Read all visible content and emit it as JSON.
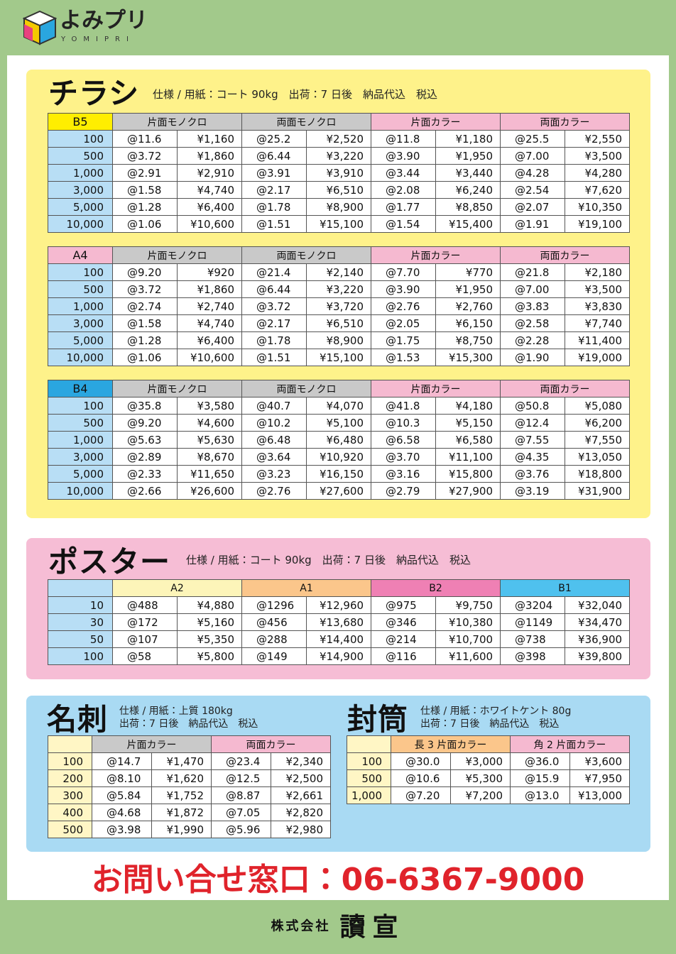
{
  "header": {
    "logo": "よみプリ",
    "logo_sub": "YOMIPRI"
  },
  "flyer": {
    "title": "チラシ",
    "spec": "仕様 / 用紙：コート 90kg　出荷：7 日後　納品代込　税込",
    "tables": [
      {
        "size": "B5",
        "columns": [
          "片面モノクロ",
          "両面モノクロ",
          "片面カラー",
          "両面カラー"
        ],
        "rows": [
          [
            "100",
            "@11.6",
            "¥1,160",
            "@25.2",
            "¥2,520",
            "@11.8",
            "¥1,180",
            "@25.5",
            "¥2,550"
          ],
          [
            "500",
            "@3.72",
            "¥1,860",
            "@6.44",
            "¥3,220",
            "@3.90",
            "¥1,950",
            "@7.00",
            "¥3,500"
          ],
          [
            "1,000",
            "@2.91",
            "¥2,910",
            "@3.91",
            "¥3,910",
            "@3.44",
            "¥3,440",
            "@4.28",
            "¥4,280"
          ],
          [
            "3,000",
            "@1.58",
            "¥4,740",
            "@2.17",
            "¥6,510",
            "@2.08",
            "¥6,240",
            "@2.54",
            "¥7,620"
          ],
          [
            "5,000",
            "@1.28",
            "¥6,400",
            "@1.78",
            "¥8,900",
            "@1.77",
            "¥8,850",
            "@2.07",
            "¥10,350"
          ],
          [
            "10,000",
            "@1.06",
            "¥10,600",
            "@1.51",
            "¥15,100",
            "@1.54",
            "¥15,400",
            "@1.91",
            "¥19,100"
          ]
        ]
      },
      {
        "size": "A4",
        "columns": [
          "片面モノクロ",
          "両面モノクロ",
          "片面カラー",
          "両面カラー"
        ],
        "rows": [
          [
            "100",
            "@9.20",
            "¥920",
            "@21.4",
            "¥2,140",
            "@7.70",
            "¥770",
            "@21.8",
            "¥2,180"
          ],
          [
            "500",
            "@3.72",
            "¥1,860",
            "@6.44",
            "¥3,220",
            "@3.90",
            "¥1,950",
            "@7.00",
            "¥3,500"
          ],
          [
            "1,000",
            "@2.74",
            "¥2,740",
            "@3.72",
            "¥3,720",
            "@2.76",
            "¥2,760",
            "@3.83",
            "¥3,830"
          ],
          [
            "3,000",
            "@1.58",
            "¥4,740",
            "@2.17",
            "¥6,510",
            "@2.05",
            "¥6,150",
            "@2.58",
            "¥7,740"
          ],
          [
            "5,000",
            "@1.28",
            "¥6,400",
            "@1.78",
            "¥8,900",
            "@1.75",
            "¥8,750",
            "@2.28",
            "¥11,400"
          ],
          [
            "10,000",
            "@1.06",
            "¥10,600",
            "@1.51",
            "¥15,100",
            "@1.53",
            "¥15,300",
            "@1.90",
            "¥19,000"
          ]
        ]
      },
      {
        "size": "B4",
        "columns": [
          "片面モノクロ",
          "両面モノクロ",
          "片面カラー",
          "両面カラー"
        ],
        "rows": [
          [
            "100",
            "@35.8",
            "¥3,580",
            "@40.7",
            "¥4,070",
            "@41.8",
            "¥4,180",
            "@50.8",
            "¥5,080"
          ],
          [
            "500",
            "@9.20",
            "¥4,600",
            "@10.2",
            "¥5,100",
            "@10.3",
            "¥5,150",
            "@12.4",
            "¥6,200"
          ],
          [
            "1,000",
            "@5.63",
            "¥5,630",
            "@6.48",
            "¥6,480",
            "@6.58",
            "¥6,580",
            "@7.55",
            "¥7,550"
          ],
          [
            "3,000",
            "@2.89",
            "¥8,670",
            "@3.64",
            "¥10,920",
            "@3.70",
            "¥11,100",
            "@4.35",
            "¥13,050"
          ],
          [
            "5,000",
            "@2.33",
            "¥11,650",
            "@3.23",
            "¥16,150",
            "@3.16",
            "¥15,800",
            "@3.76",
            "¥18,800"
          ],
          [
            "10,000",
            "@2.66",
            "¥26,600",
            "@2.76",
            "¥27,600",
            "@2.79",
            "¥27,900",
            "@3.19",
            "¥31,900"
          ]
        ]
      }
    ]
  },
  "poster": {
    "title": "ポスター",
    "spec": "仕様 / 用紙：コート 90kg　出荷：7 日後　納品代込　税込",
    "table": {
      "columns": [
        "A2",
        "A1",
        "B2",
        "B1"
      ],
      "rows": [
        [
          "10",
          "@488",
          "¥4,880",
          "@1296",
          "¥12,960",
          "@975",
          "¥9,750",
          "@3204",
          "¥32,040"
        ],
        [
          "30",
          "@172",
          "¥5,160",
          "@456",
          "¥13,680",
          "@346",
          "¥10,380",
          "@1149",
          "¥34,470"
        ],
        [
          "50",
          "@107",
          "¥5,350",
          "@288",
          "¥14,400",
          "@214",
          "¥10,700",
          "@738",
          "¥36,900"
        ],
        [
          "100",
          "@58",
          "¥5,800",
          "@149",
          "¥14,900",
          "@116",
          "¥11,600",
          "@398",
          "¥39,800"
        ]
      ]
    }
  },
  "business_card": {
    "title": "名刺",
    "spec": [
      "仕様 / 用紙：上質 180kg",
      "出荷：7 日後　納品代込　税込"
    ],
    "table": {
      "columns": [
        "片面カラー",
        "両面カラー"
      ],
      "rows": [
        [
          "100",
          "@14.7",
          "¥1,470",
          "@23.4",
          "¥2,340"
        ],
        [
          "200",
          "@8.10",
          "¥1,620",
          "@12.5",
          "¥2,500"
        ],
        [
          "300",
          "@5.84",
          "¥1,752",
          "@8.87",
          "¥2,661"
        ],
        [
          "400",
          "@4.68",
          "¥1,872",
          "@7.05",
          "¥2,820"
        ],
        [
          "500",
          "@3.98",
          "¥1,990",
          "@5.96",
          "¥2,980"
        ]
      ]
    }
  },
  "envelope": {
    "title": "封筒",
    "spec": [
      "仕様 / 用紙：ホワイトケント 80g",
      "出荷：7 日後　納品代込　税込"
    ],
    "table": {
      "columns": [
        "長 3 片面カラー",
        "角 2 片面カラー"
      ],
      "rows": [
        [
          "100",
          "@30.0",
          "¥3,000",
          "@36.0",
          "¥3,600"
        ],
        [
          "500",
          "@10.6",
          "¥5,300",
          "@15.9",
          "¥7,950"
        ],
        [
          "1,000",
          "@7.20",
          "¥7,200",
          "@13.0",
          "¥13,000"
        ]
      ]
    }
  },
  "contact": "お問い合せ窓口：06-6367-9000",
  "footer": {
    "company_type": "株式会社",
    "company_name": "讀宣"
  }
}
